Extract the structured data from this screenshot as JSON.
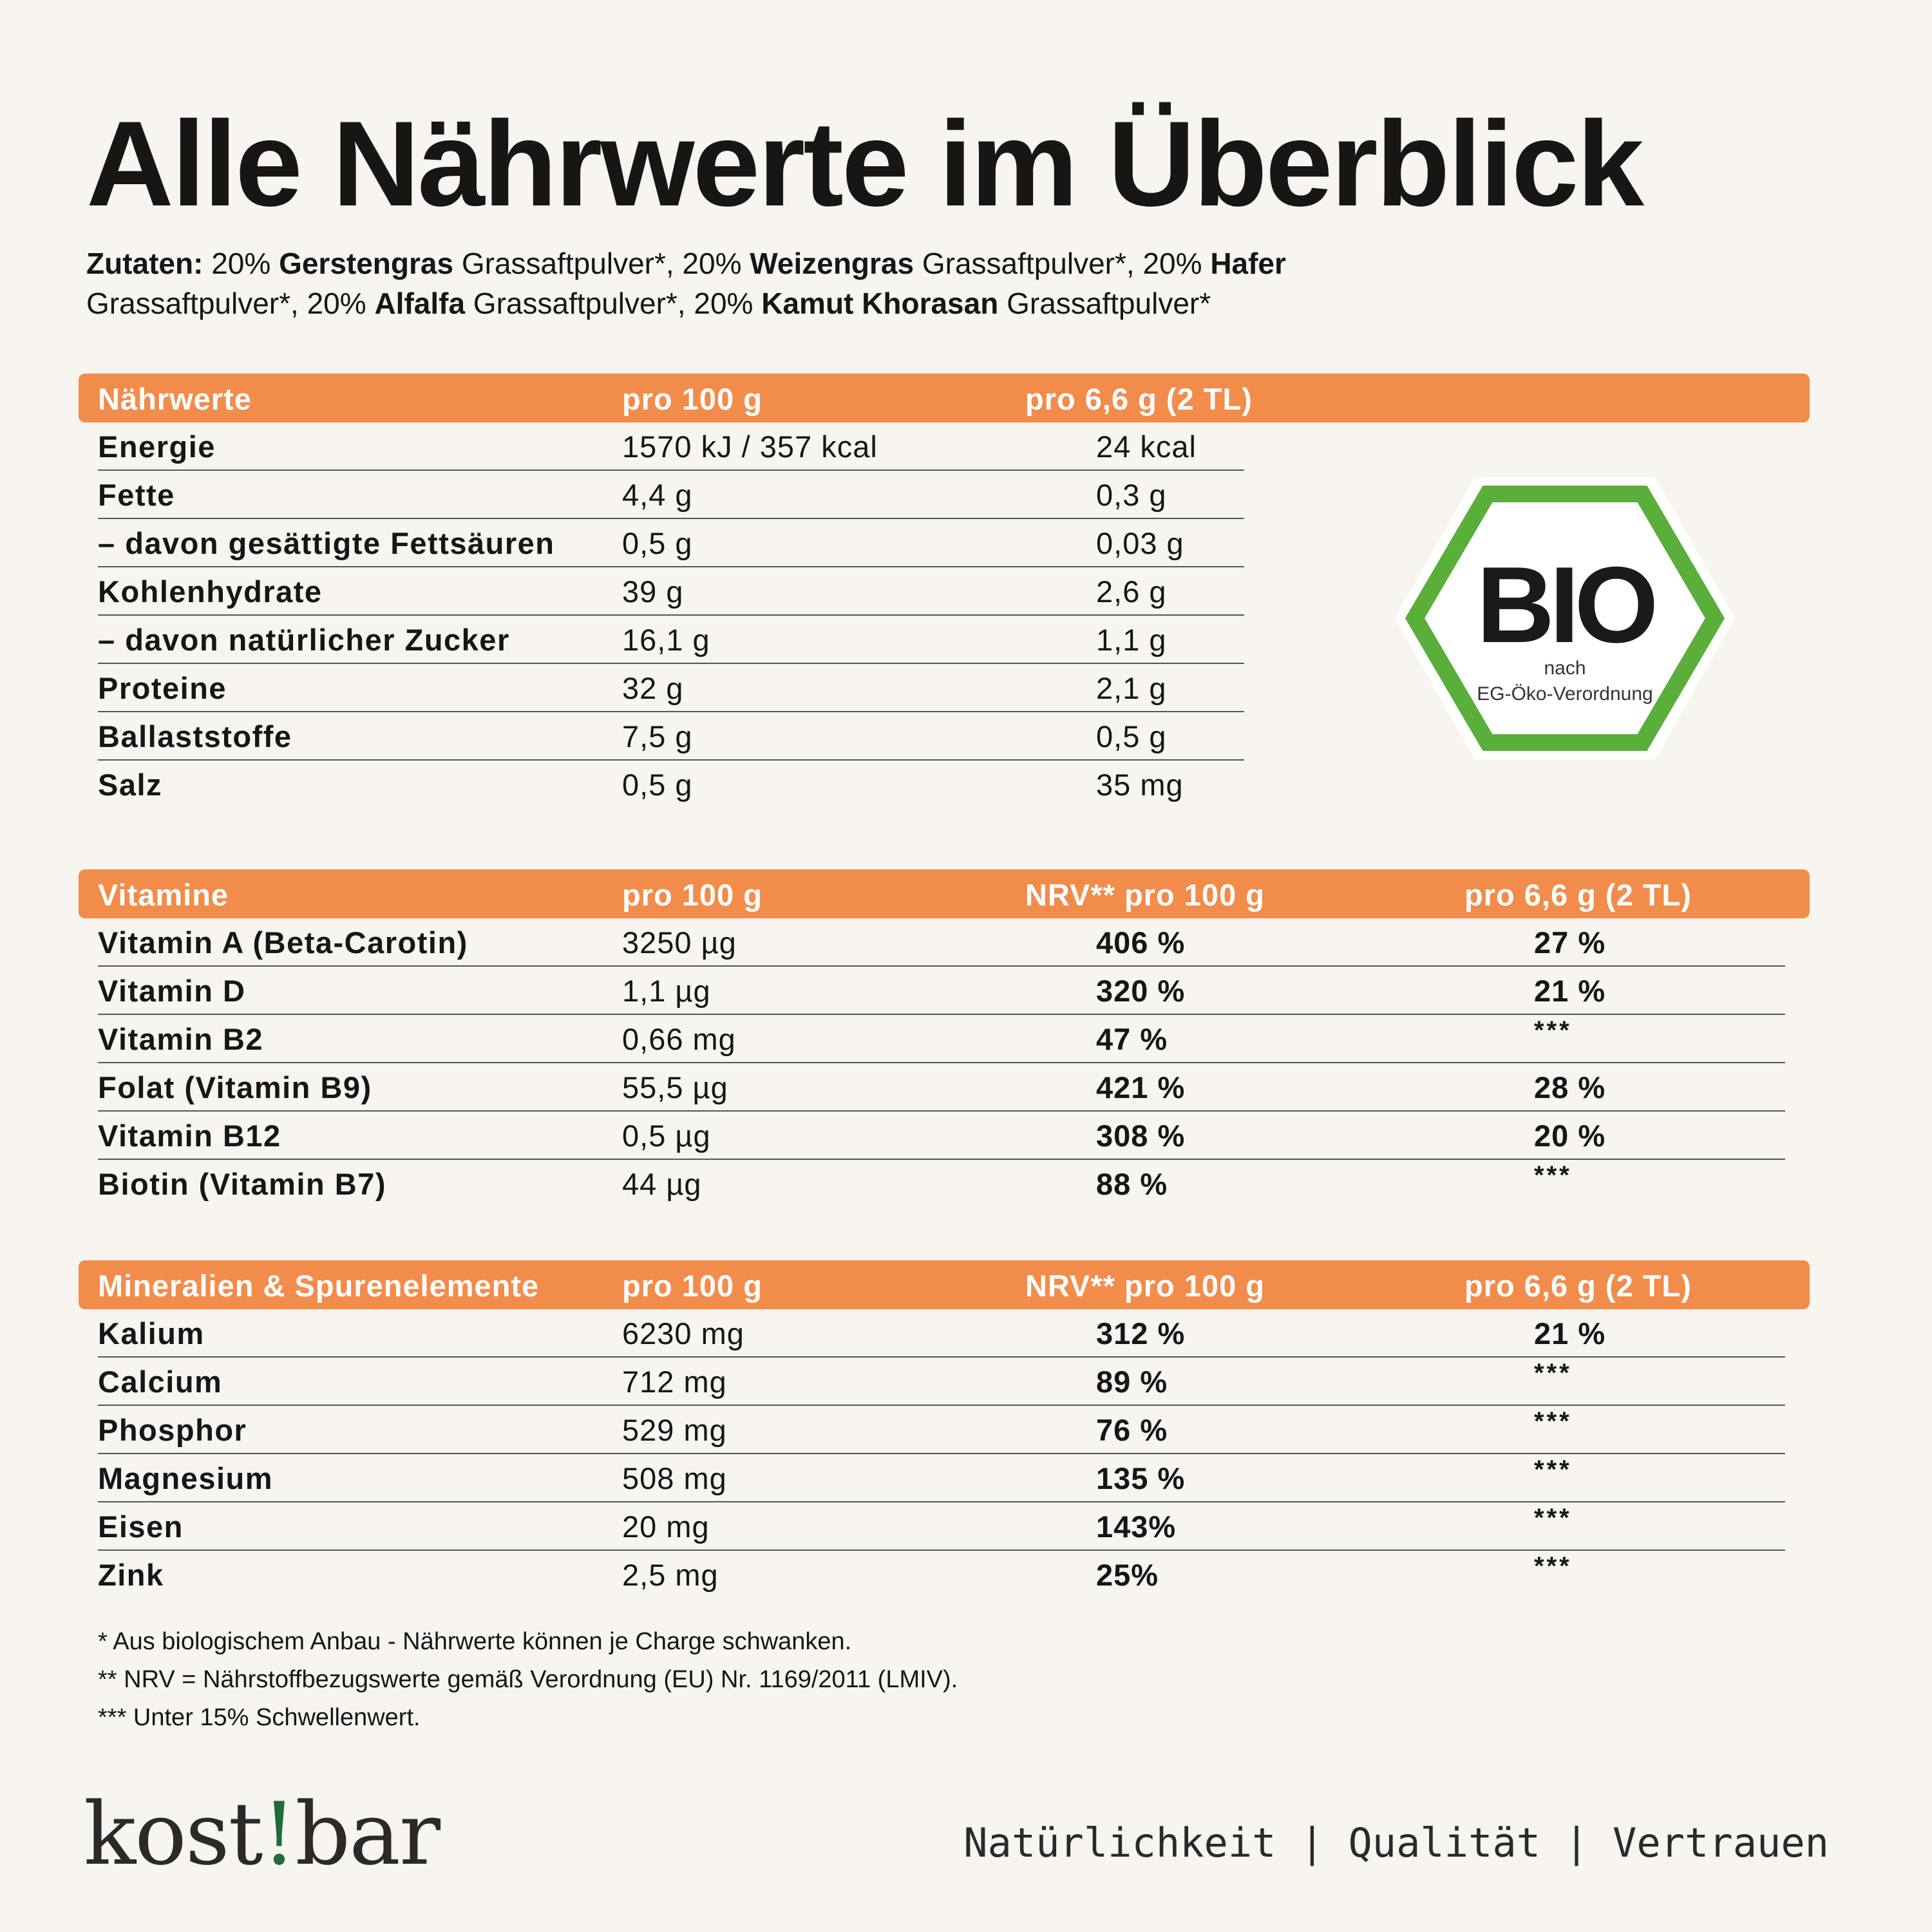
{
  "title": "Alle Nährwerte im Überblick",
  "ingredients": {
    "lead": "Zutaten:",
    "items": [
      {
        "prefix": " 20% ",
        "bold": "Gerstengras",
        "rest": " Grassaftpulver*,"
      },
      {
        "prefix": " 20% ",
        "bold": "Weizengras",
        "rest": " Grassaftpulver*,"
      },
      {
        "prefix": " 20% ",
        "bold": "Hafer",
        "rest": " Grassaftpulver*,"
      },
      {
        "prefix": " 20% ",
        "bold": "Alfalfa",
        "rest": " Grassaftpulver*,"
      },
      {
        "prefix": " 20% ",
        "bold": "Kamut Khorasan",
        "rest": " Grassaftpulver*"
      }
    ]
  },
  "nutrition": {
    "headers": [
      "Nährwerte",
      "pro 100 g",
      "pro 6,6 g  (2 TL)"
    ],
    "rows": [
      [
        "Energie",
        "1570 kJ / 357 kcal",
        "24 kcal"
      ],
      [
        "Fette",
        "4,4 g",
        "0,3 g"
      ],
      [
        "– davon gesättigte Fettsäuren",
        "0,5 g",
        "0,03 g"
      ],
      [
        "Kohlenhydrate",
        "39 g",
        "2,6 g"
      ],
      [
        "– davon natürlicher Zucker",
        "16,1 g",
        "1,1 g"
      ],
      [
        "Proteine",
        "32 g",
        "2,1 g"
      ],
      [
        "Ballaststoffe",
        "7,5 g",
        "0,5 g"
      ],
      [
        "Salz",
        "0,5 g",
        "35 mg"
      ]
    ]
  },
  "vitamins": {
    "headers": [
      "Vitamine",
      "pro 100 g",
      "NRV** pro 100 g",
      "pro 6,6 g  (2 TL)"
    ],
    "rows": [
      [
        "Vitamin A (Beta-Carotin)",
        "3250 µg",
        "406 %",
        "27 %"
      ],
      [
        "Vitamin D",
        "1,1 µg",
        "320 %",
        "21 %"
      ],
      [
        "Vitamin B2",
        "0,66 mg",
        "47 %",
        "***"
      ],
      [
        "Folat (Vitamin B9)",
        "55,5 µg",
        "421 %",
        "28 %"
      ],
      [
        "Vitamin B12",
        "0,5 µg",
        "308 %",
        "20 %"
      ],
      [
        "Biotin (Vitamin B7)",
        "44 µg",
        "88 %",
        "***"
      ]
    ]
  },
  "minerals": {
    "headers": [
      "Mineralien & Spurenelemente",
      "pro 100 g",
      "NRV** pro 100 g",
      "pro 6,6 g  (2 TL)"
    ],
    "rows": [
      [
        "Kalium",
        "6230 mg",
        "312 %",
        "21 %"
      ],
      [
        "Calcium",
        "712 mg",
        "89 %",
        "***"
      ],
      [
        "Phosphor",
        "529 mg",
        "76 %",
        "***"
      ],
      [
        "Magnesium",
        "508 mg",
        "135 %",
        "***"
      ],
      [
        "Eisen",
        "20 mg",
        "143%",
        "***"
      ],
      [
        "Zink",
        "2,5 mg",
        "25%",
        "***"
      ]
    ]
  },
  "bio_logo": {
    "word": "BIO",
    "line1": "nach",
    "line2": "EG-Öko-Verordnung",
    "border_color": "#5aae3a",
    "text_color": "#1a1a1a"
  },
  "footnotes": [
    "* Aus biologischem Anbau - Nährwerte können je Charge schwanken.",
    "** NRV = Nährstoffbezugswerte gemäß Verordnung (EU) Nr. 1169/2011 (LMIV).",
    "*** Unter 15% Schwellenwert."
  ],
  "brand": {
    "before": "kost",
    "mark": "!",
    "after": "bar"
  },
  "tagline": "Natürlichkeit | Qualität | Vertrauen",
  "colors": {
    "accent": "#f28c4b",
    "background": "#f8f5f0",
    "brand_green": "#1f6b3a"
  }
}
